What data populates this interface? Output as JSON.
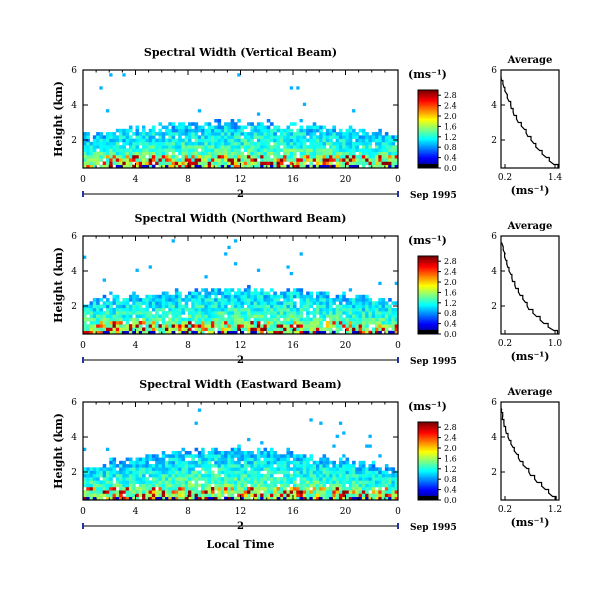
{
  "figure": {
    "x_axis_label": "Local Time",
    "average_title": "Average",
    "average_unit": "(ms⁻¹)",
    "height_label": "Height (km)",
    "colorbar_unit": "(ms⁻¹)"
  },
  "chart_data": [
    {
      "type": "heatmap",
      "title": "Spectral Width (Vertical Beam)",
      "ylabel": "Height (km)",
      "x_ticks": [
        "0",
        "4",
        "8",
        "12",
        "16",
        "20",
        "0"
      ],
      "y_ticks": [
        "2",
        "4",
        "6"
      ],
      "xlim": [
        0,
        24
      ],
      "ylim": [
        0.4,
        6
      ],
      "date_label": "2",
      "date_suffix": "Sep 1995",
      "colorbar": {
        "ticks": [
          "0.0",
          "0.4",
          "0.8",
          "1.2",
          "1.6",
          "2.0",
          "2.4",
          "2.8"
        ],
        "range": [
          0,
          3.0
        ]
      },
      "profile": {
        "title": "Average",
        "xlabel": "(ms⁻¹)",
        "x_ticks": [
          "0.2",
          "1.4"
        ],
        "xlim": [
          0.2,
          1.4
        ],
        "y_ticks": [
          "2",
          "4",
          "6"
        ],
        "ylim": [
          0.4,
          6
        ],
        "height": [
          0.4,
          0.8,
          1.2,
          1.6,
          2.0,
          2.4,
          2.8,
          3.2,
          3.6,
          4.0,
          4.4,
          4.8,
          5.2,
          5.6
        ],
        "value": [
          1.38,
          1.2,
          1.05,
          0.92,
          0.82,
          0.72,
          0.62,
          0.52,
          0.45,
          0.4,
          0.33,
          0.28,
          0.24,
          0.2
        ]
      }
    },
    {
      "type": "heatmap",
      "title": "Spectral Width (Northward Beam)",
      "ylabel": "Height (km)",
      "x_ticks": [
        "0",
        "4",
        "8",
        "12",
        "16",
        "20",
        "0"
      ],
      "y_ticks": [
        "2",
        "4",
        "6"
      ],
      "xlim": [
        0,
        24
      ],
      "ylim": [
        0.4,
        6
      ],
      "date_label": "2",
      "date_suffix": "Sep 1995",
      "colorbar": {
        "ticks": [
          "0.0",
          "0.4",
          "0.8",
          "1.2",
          "1.6",
          "2.0",
          "2.4",
          "2.8"
        ],
        "range": [
          0,
          3.0
        ]
      },
      "profile": {
        "title": "Average",
        "xlabel": "(ms⁻¹)",
        "x_ticks": [
          "0.2",
          "1.0"
        ],
        "xlim": [
          0.2,
          1.0
        ],
        "y_ticks": [
          "2",
          "4",
          "6"
        ],
        "ylim": [
          0.4,
          6
        ],
        "height": [
          0.4,
          0.8,
          1.2,
          1.6,
          2.0,
          2.4,
          2.8,
          3.2,
          3.6,
          4.0,
          4.4,
          4.8,
          5.2,
          5.6
        ],
        "value": [
          0.98,
          0.85,
          0.74,
          0.64,
          0.56,
          0.5,
          0.44,
          0.39,
          0.35,
          0.31,
          0.28,
          0.25,
          0.23,
          0.21
        ]
      }
    },
    {
      "type": "heatmap",
      "title": "Spectral Width (Eastward Beam)",
      "ylabel": "Height (km)",
      "x_ticks": [
        "0",
        "4",
        "8",
        "12",
        "16",
        "20",
        "0"
      ],
      "y_ticks": [
        "2",
        "4",
        "6"
      ],
      "xlim": [
        0,
        24
      ],
      "ylim": [
        0.4,
        6
      ],
      "date_label": "2",
      "date_suffix": "Sep 1995",
      "colorbar": {
        "ticks": [
          "0.0",
          "0.4",
          "0.8",
          "1.2",
          "1.6",
          "2.0",
          "2.4",
          "2.8"
        ],
        "range": [
          0,
          3.0
        ]
      },
      "profile": {
        "title": "Average",
        "xlabel": "(ms⁻¹)",
        "x_ticks": [
          "0.2",
          "1.2"
        ],
        "xlim": [
          0.2,
          1.2
        ],
        "y_ticks": [
          "2",
          "4",
          "6"
        ],
        "ylim": [
          0.4,
          6
        ],
        "height": [
          0.4,
          0.8,
          1.2,
          1.6,
          2.0,
          2.4,
          2.8,
          3.2,
          3.6,
          4.0,
          4.4,
          4.8,
          5.2,
          5.6
        ],
        "value": [
          1.15,
          1.02,
          0.9,
          0.78,
          0.68,
          0.58,
          0.5,
          0.43,
          0.37,
          0.32,
          0.28,
          0.25,
          0.23,
          0.21
        ]
      }
    }
  ]
}
